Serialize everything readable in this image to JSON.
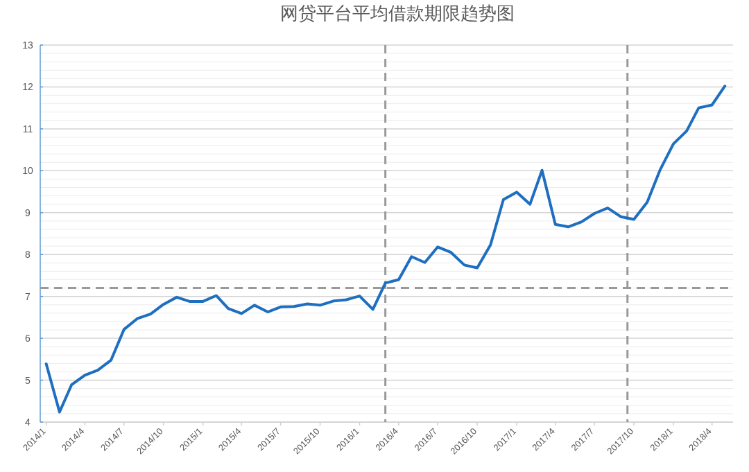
{
  "chart_data": {
    "type": "line",
    "title": "网贷平台平均借款期限趋势图",
    "x": [
      "2014-01",
      "2014-02",
      "2014-03",
      "2014-04",
      "2014-05",
      "2014-06",
      "2014-07",
      "2014-08",
      "2014-09",
      "2014-10",
      "2014-11",
      "2014-12",
      "2015-01",
      "2015-02",
      "2015-03",
      "2015-04",
      "2015-05",
      "2015-06",
      "2015-07",
      "2015-08",
      "2015-09",
      "2015-10",
      "2015-11",
      "2015-12",
      "2016-01",
      "2016-02",
      "2016-03",
      "2016-04",
      "2016-05",
      "2016-06",
      "2016-07",
      "2016-08",
      "2016-09",
      "2016-10",
      "2016-11",
      "2016-12",
      "2017-01",
      "2017-02",
      "2017-03",
      "2017-04",
      "2017-05",
      "2017-06",
      "2017-07",
      "2017-08",
      "2017-09",
      "2017-10",
      "2017-11",
      "2017-12",
      "2018-01",
      "2018-02",
      "2018-03",
      "2018-04",
      "2018-05"
    ],
    "series": [
      {
        "color": "#1f6fc0",
        "values": [
          5.39,
          4.24,
          4.89,
          5.12,
          5.24,
          5.48,
          6.21,
          6.47,
          6.58,
          6.81,
          6.98,
          6.88,
          6.88,
          7.02,
          6.71,
          6.59,
          6.79,
          6.63,
          6.75,
          6.76,
          6.82,
          6.79,
          6.89,
          6.92,
          7.01,
          6.69,
          7.32,
          7.4,
          7.95,
          7.81,
          8.18,
          8.05,
          7.75,
          7.68,
          8.23,
          9.31,
          9.49,
          9.2,
          10.01,
          8.72,
          8.66,
          8.78,
          8.98,
          9.11,
          8.9,
          8.84,
          9.25,
          10.02,
          10.64,
          10.95,
          11.5,
          11.57,
          12.02
        ]
      }
    ],
    "xlim": [
      "2013-12-18",
      "2018-05-20"
    ],
    "xticks": [
      {
        "value": "2014-01",
        "label": "2014/1"
      },
      {
        "value": "2014-04",
        "label": "2014/4"
      },
      {
        "value": "2014-07",
        "label": "2014/7"
      },
      {
        "value": "2014-10",
        "label": "2014/10"
      },
      {
        "value": "2015-01",
        "label": "2015/1"
      },
      {
        "value": "2015-04",
        "label": "2015/4"
      },
      {
        "value": "2015-07",
        "label": "2015/7"
      },
      {
        "value": "2015-10",
        "label": "2015/10"
      },
      {
        "value": "2016-01",
        "label": "2016/1"
      },
      {
        "value": "2016-04",
        "label": "2016/4"
      },
      {
        "value": "2016-07",
        "label": "2016/7"
      },
      {
        "value": "2016-10",
        "label": "2016/10"
      },
      {
        "value": "2017-01",
        "label": "2017/1"
      },
      {
        "value": "2017-04",
        "label": "2017/4"
      },
      {
        "value": "2017-07",
        "label": "2017/7"
      },
      {
        "value": "2017-10",
        "label": "2017/10"
      },
      {
        "value": "2018-01",
        "label": "2018/1"
      },
      {
        "value": "2018-04",
        "label": "2018/4"
      }
    ],
    "ylim": [
      4,
      13
    ],
    "yticks": [
      4,
      5,
      6,
      7,
      8,
      9,
      10,
      11,
      12,
      13
    ],
    "grid": "y",
    "marker": "none",
    "line_style": "solid",
    "ref_lines": [
      {
        "axis": "y",
        "value": 7.2,
        "color": "#999999",
        "line_style": "dashed"
      },
      {
        "axis": "x",
        "value": "2016-03",
        "color": "#999999",
        "line_style": "dashed"
      },
      {
        "axis": "x",
        "value": "2017-09-16",
        "color": "#999999",
        "line_style": "dashed"
      }
    ]
  }
}
